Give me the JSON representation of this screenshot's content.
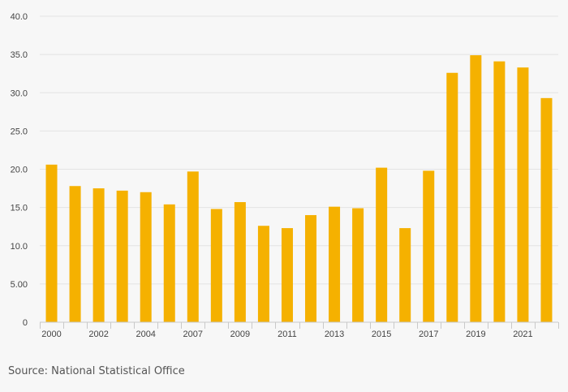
{
  "source": "Source: National Statistical Office",
  "colors": {
    "bar": "#f5b100",
    "grid": "#e3e3e3",
    "axis": "#c9c9c9",
    "text": "#444444",
    "background": "#f7f7f7"
  },
  "chart_data": {
    "type": "bar",
    "title": "",
    "xlabel": "",
    "ylabel": "",
    "categories": [
      "2000",
      "2001",
      "2002",
      "2003",
      "2004",
      "2005",
      "2007",
      "2008",
      "2009",
      "2010",
      "2011",
      "2012",
      "2013",
      "2014",
      "2015",
      "2016",
      "2017",
      "2018",
      "2019",
      "2020",
      "2021",
      "2022"
    ],
    "x_tick_labels": [
      "2000",
      "",
      "2002",
      "",
      "2004",
      "",
      "2007",
      "",
      "2009",
      "",
      "2011",
      "",
      "2013",
      "",
      "2015",
      "",
      "2017",
      "",
      "2019",
      "",
      "2021",
      ""
    ],
    "values": [
      20.6,
      17.8,
      17.5,
      17.2,
      17.0,
      15.4,
      19.7,
      14.8,
      15.7,
      12.6,
      12.3,
      14.0,
      15.1,
      14.9,
      20.2,
      12.3,
      19.8,
      32.6,
      34.9,
      34.1,
      33.3,
      29.3
    ],
    "ylim": [
      0,
      40
    ],
    "y_ticks": [
      {
        "value": 0,
        "label": "0"
      },
      {
        "value": 5,
        "label": "5.00"
      },
      {
        "value": 10,
        "label": "10.0"
      },
      {
        "value": 15,
        "label": "15.0"
      },
      {
        "value": 20,
        "label": "20.0"
      },
      {
        "value": 25,
        "label": "25.0"
      },
      {
        "value": 30,
        "label": "30.0"
      },
      {
        "value": 35,
        "label": "35.0"
      },
      {
        "value": 40,
        "label": "40.0"
      }
    ],
    "grid": true,
    "legend": "none"
  }
}
